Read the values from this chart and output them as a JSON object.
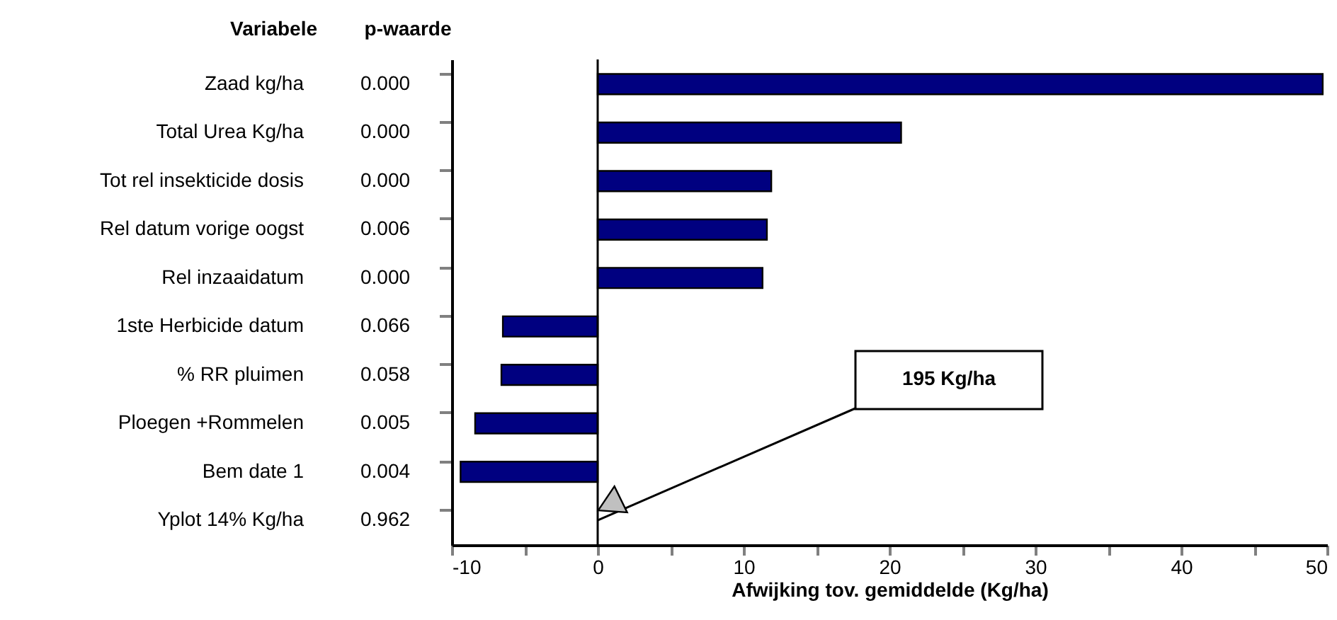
{
  "chart_data": {
    "type": "bar",
    "orientation": "horizontal",
    "categories": [
      "Zaad kg/ha",
      "Total Urea Kg/ha",
      "Tot rel insekticide dosis",
      "Rel datum vorige oogst",
      "Rel inzaaidatum",
      "1ste Herbicide datum",
      "% RR pluimen",
      "Ploegen +Rommelen",
      "Bem date 1",
      "Yplot 14% Kg/ha"
    ],
    "values": [
      49.7,
      20.8,
      11.9,
      11.6,
      11.3,
      -6.5,
      -6.6,
      -8.4,
      -9.4,
      null
    ],
    "color": "#000080",
    "xlim": [
      -10,
      50
    ],
    "xticks": [
      -10,
      {
        "value": -5,
        "label": null
      },
      0,
      {
        "value": 5,
        "label": null
      },
      10,
      {
        "value": 15,
        "label": null
      },
      20,
      {
        "value": 25,
        "label": null
      },
      30,
      {
        "value": 35,
        "label": null
      },
      40,
      {
        "value": 45,
        "label": null
      },
      50
    ],
    "xlabel": "Afwijking tov. gemiddelde (Kg/ha)",
    "ref_lines": [
      {
        "axis": "x",
        "value": 0,
        "label": null
      }
    ],
    "annotations": [
      "Variabele",
      "p-waarde",
      "0.000",
      "0.000",
      "0.000",
      "0.006",
      "0.000",
      "0.066",
      "0.058",
      "0.005",
      "0.004",
      "0.962",
      "195 Kg/ha"
    ]
  }
}
